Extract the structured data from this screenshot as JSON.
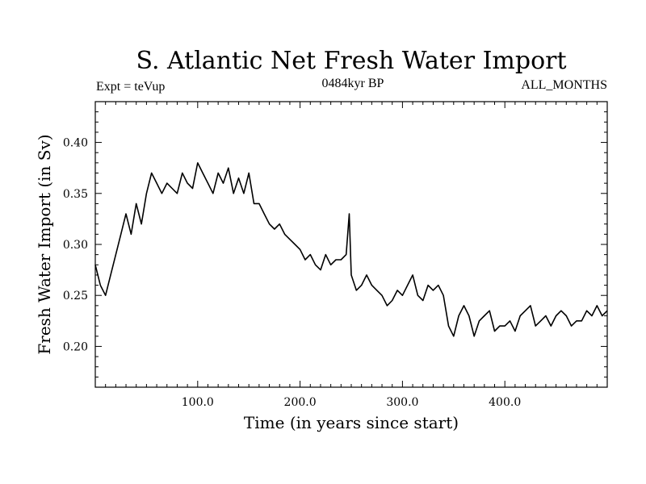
{
  "chart_data": {
    "type": "line",
    "title": "S. Atlantic Net Fresh Water Import",
    "subtitle_left": "Expt = teVup",
    "subtitle_center": "0484kyr BP",
    "subtitle_right": "ALL_MONTHS",
    "xlabel": "Time (in years since start)",
    "ylabel": "Fresh Water Import (in Sv)",
    "xlim": [
      0,
      500
    ],
    "ylim": [
      0.16,
      0.44
    ],
    "x_ticks": [
      100,
      200,
      300,
      400
    ],
    "x_tick_labels": [
      "100.0",
      "200.0",
      "300.0",
      "400.0"
    ],
    "y_ticks": [
      0.2,
      0.25,
      0.3,
      0.35,
      0.4
    ],
    "y_tick_labels": [
      "0.20",
      "0.25",
      "0.30",
      "0.35",
      "0.40"
    ],
    "series": [
      {
        "color": "#000000",
        "x": [
          0,
          5,
          10,
          15,
          20,
          25,
          30,
          35,
          40,
          45,
          50,
          55,
          60,
          65,
          70,
          75,
          80,
          85,
          90,
          95,
          100,
          105,
          110,
          115,
          120,
          125,
          130,
          135,
          140,
          145,
          150,
          155,
          160,
          165,
          170,
          175,
          180,
          185,
          190,
          195,
          200,
          205,
          210,
          215,
          220,
          225,
          230,
          235,
          240,
          245,
          248,
          250,
          255,
          260,
          265,
          270,
          275,
          280,
          285,
          290,
          295,
          300,
          305,
          310,
          315,
          320,
          325,
          330,
          335,
          340,
          345,
          350,
          355,
          360,
          365,
          370,
          375,
          380,
          385,
          390,
          395,
          400,
          405,
          410,
          415,
          420,
          425,
          430,
          435,
          440,
          445,
          450,
          455,
          460,
          465,
          470,
          475,
          480,
          485,
          490,
          495,
          500
        ],
        "y": [
          0.28,
          0.26,
          0.25,
          0.27,
          0.29,
          0.31,
          0.33,
          0.31,
          0.34,
          0.32,
          0.35,
          0.37,
          0.36,
          0.35,
          0.36,
          0.355,
          0.35,
          0.37,
          0.36,
          0.355,
          0.38,
          0.37,
          0.36,
          0.35,
          0.37,
          0.36,
          0.375,
          0.35,
          0.365,
          0.35,
          0.37,
          0.34,
          0.34,
          0.33,
          0.32,
          0.315,
          0.32,
          0.31,
          0.305,
          0.3,
          0.295,
          0.285,
          0.29,
          0.28,
          0.275,
          0.29,
          0.28,
          0.285,
          0.285,
          0.29,
          0.33,
          0.27,
          0.255,
          0.26,
          0.27,
          0.26,
          0.255,
          0.25,
          0.24,
          0.245,
          0.255,
          0.25,
          0.26,
          0.27,
          0.25,
          0.245,
          0.26,
          0.255,
          0.26,
          0.25,
          0.22,
          0.21,
          0.23,
          0.24,
          0.23,
          0.21,
          0.225,
          0.23,
          0.235,
          0.215,
          0.22,
          0.22,
          0.225,
          0.215,
          0.23,
          0.235,
          0.24,
          0.22,
          0.225,
          0.23,
          0.22,
          0.23,
          0.235,
          0.23,
          0.22,
          0.225,
          0.225,
          0.235,
          0.23,
          0.24,
          0.23,
          0.235
        ]
      }
    ]
  }
}
